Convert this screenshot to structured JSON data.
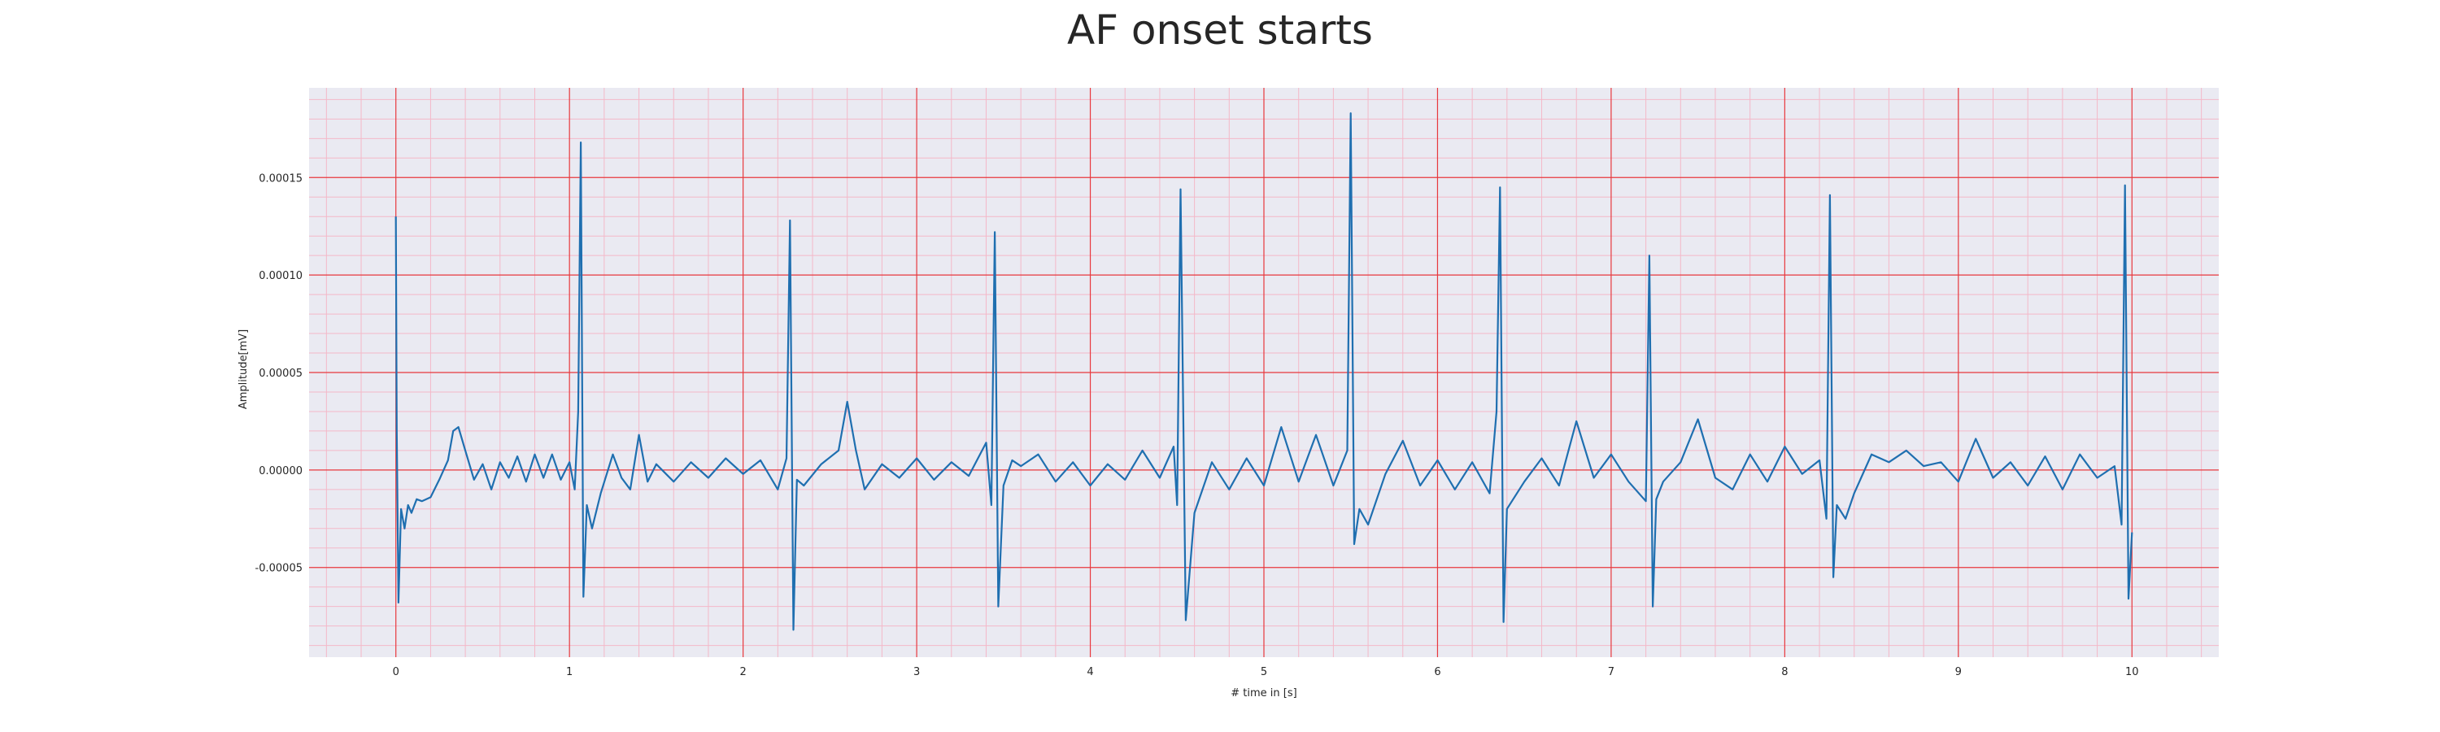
{
  "chart_data": {
    "type": "line",
    "title": "AF onset starts",
    "xlabel": "# time in [s]",
    "ylabel": "Amplitude[mV]",
    "xlim": [
      -0.5,
      10.5
    ],
    "ylim": [
      -9.6e-05,
      0.000196
    ],
    "x_ticks": [
      0,
      1,
      2,
      3,
      4,
      5,
      6,
      7,
      8,
      9,
      10
    ],
    "x_tick_labels": [
      "0",
      "1",
      "2",
      "3",
      "4",
      "5",
      "6",
      "7",
      "8",
      "9",
      "10"
    ],
    "y_ticks": [
      -5e-05,
      0.0,
      5e-05,
      0.0001,
      0.00015
    ],
    "y_tick_labels": [
      "-0.00005",
      "0.00000",
      "0.00005",
      "0.00010",
      "0.00015"
    ],
    "grid": true,
    "legend": "none",
    "colors": {
      "background": "#eaeaf2",
      "major_grid": "#e8383d",
      "minor_grid": "#f4b8c8",
      "line": "#1f6fb0"
    },
    "series": [
      {
        "x": [
          0.0,
          0.005,
          0.015,
          0.03,
          0.05,
          0.07,
          0.09,
          0.12,
          0.15,
          0.2,
          0.25,
          0.3,
          0.33,
          0.36,
          0.4,
          0.45,
          0.5,
          0.55,
          0.6,
          0.65,
          0.7,
          0.75,
          0.8,
          0.85,
          0.9,
          0.95,
          1.0,
          1.03,
          1.05,
          1.065,
          1.08,
          1.1,
          1.13,
          1.18,
          1.25,
          1.3,
          1.35,
          1.4,
          1.45,
          1.5,
          1.6,
          1.7,
          1.8,
          1.9,
          2.0,
          2.1,
          2.2,
          2.25,
          2.27,
          2.29,
          2.31,
          2.35,
          2.45,
          2.55,
          2.6,
          2.65,
          2.7,
          2.8,
          2.9,
          3.0,
          3.1,
          3.2,
          3.3,
          3.4,
          3.43,
          3.45,
          3.47,
          3.5,
          3.55,
          3.6,
          3.7,
          3.8,
          3.9,
          4.0,
          4.1,
          4.2,
          4.3,
          4.4,
          4.48,
          4.5,
          4.52,
          4.55,
          4.6,
          4.7,
          4.8,
          4.9,
          5.0,
          5.1,
          5.2,
          5.3,
          5.4,
          5.48,
          5.5,
          5.52,
          5.55,
          5.6,
          5.7,
          5.8,
          5.9,
          6.0,
          6.1,
          6.2,
          6.3,
          6.34,
          6.36,
          6.38,
          6.4,
          6.5,
          6.6,
          6.7,
          6.8,
          6.9,
          7.0,
          7.1,
          7.2,
          7.22,
          7.24,
          7.26,
          7.3,
          7.4,
          7.5,
          7.6,
          7.7,
          7.8,
          7.9,
          8.0,
          8.1,
          8.2,
          8.24,
          8.26,
          8.28,
          8.3,
          8.35,
          8.4,
          8.5,
          8.6,
          8.7,
          8.8,
          8.9,
          9.0,
          9.1,
          9.2,
          9.3,
          9.4,
          9.5,
          9.6,
          9.7,
          9.8,
          9.9,
          9.94,
          9.96,
          9.98,
          10.0
        ],
        "values": [
          0.00013,
          2e-05,
          -6.8e-05,
          -2e-05,
          -3e-05,
          -1.8e-05,
          -2.2e-05,
          -1.5e-05,
          -1.6e-05,
          -1.4e-05,
          -5e-06,
          5e-06,
          2e-05,
          2.2e-05,
          1e-05,
          -5e-06,
          3e-06,
          -1e-05,
          4e-06,
          -4e-06,
          7e-06,
          -6e-06,
          8e-06,
          -4e-06,
          8e-06,
          -5e-06,
          4e-06,
          -1e-05,
          3e-05,
          0.000168,
          -6.5e-05,
          -1.8e-05,
          -3e-05,
          -1.2e-05,
          8e-06,
          -4e-06,
          -1e-05,
          1.8e-05,
          -6e-06,
          3e-06,
          -6e-06,
          4e-06,
          -4e-06,
          6e-06,
          -2e-06,
          5e-06,
          -1e-05,
          6e-06,
          0.000128,
          -8.2e-05,
          -5e-06,
          -8e-06,
          3e-06,
          1e-05,
          3.5e-05,
          1e-05,
          -1e-05,
          3e-06,
          -4e-06,
          6e-06,
          -5e-06,
          4e-06,
          -3e-06,
          1.4e-05,
          -1.8e-05,
          0.000122,
          -7e-05,
          -8e-06,
          5e-06,
          2e-06,
          8e-06,
          -6e-06,
          4e-06,
          -8e-06,
          3e-06,
          -5e-06,
          1e-05,
          -4e-06,
          1.2e-05,
          -1.8e-05,
          0.000144,
          -7.7e-05,
          -2.2e-05,
          4e-06,
          -1e-05,
          6e-06,
          -8e-06,
          2.2e-05,
          -6e-06,
          1.8e-05,
          -8e-06,
          1e-05,
          0.000183,
          -3.8e-05,
          -2e-05,
          -2.8e-05,
          -2e-06,
          1.5e-05,
          -8e-06,
          5e-06,
          -1e-05,
          4e-06,
          -1.2e-05,
          3e-05,
          0.000145,
          -7.8e-05,
          -2e-05,
          -6e-06,
          6e-06,
          -8e-06,
          2.5e-05,
          -4e-06,
          8e-06,
          -6e-06,
          -1.6e-05,
          0.00011,
          -7e-05,
          -1.5e-05,
          -6e-06,
          4e-06,
          2.6e-05,
          -4e-06,
          -1e-05,
          8e-06,
          -6e-06,
          1.2e-05,
          -2e-06,
          5e-06,
          -2.5e-05,
          0.000141,
          -5.5e-05,
          -1.8e-05,
          -2.5e-05,
          -1.2e-05,
          8e-06,
          4e-06,
          1e-05,
          2e-06,
          4e-06,
          -6e-06,
          1.6e-05,
          -4e-06,
          4e-06,
          -8e-06,
          7e-06,
          -1e-05,
          8e-06,
          -4e-06,
          2e-06,
          -2.8e-05,
          0.000146,
          -6.6e-05,
          -3.2e-05
        ]
      }
    ]
  }
}
